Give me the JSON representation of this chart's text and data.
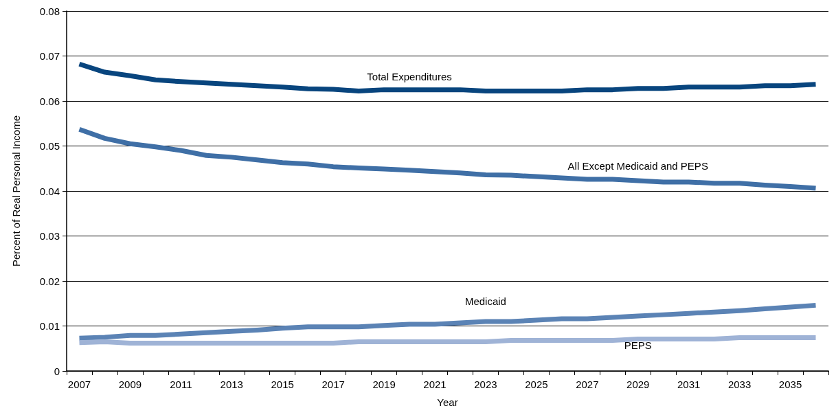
{
  "chart_data": {
    "type": "line",
    "xlabel": "Year",
    "ylabel": "Percent of Real Personal Income",
    "categories": [
      "2007",
      null,
      "2009",
      null,
      "2011",
      null,
      "2013",
      null,
      "2015",
      null,
      "2017",
      null,
      "2019",
      null,
      "2021",
      null,
      "2023",
      null,
      "2025",
      null,
      "2027",
      null,
      "2029",
      null,
      "2031",
      null,
      "2033",
      null,
      "2035",
      null
    ],
    "ylim": [
      0,
      0.08
    ],
    "yticks": [
      0,
      0.01,
      0.02,
      0.03,
      0.04,
      0.05,
      0.06,
      0.07,
      0.08
    ],
    "grid": "y",
    "legend": false,
    "marker": "none",
    "line_style": "solid",
    "series": [
      {
        "name": "Total Expenditures",
        "color": "#08457e",
        "values": [
          0.0682,
          0.0664,
          0.0656,
          0.0647,
          0.0643,
          0.064,
          0.0637,
          0.0634,
          0.0631,
          0.0627,
          0.0626,
          0.0622,
          0.0625,
          0.0625,
          0.0625,
          0.0625,
          0.0622,
          0.0622,
          0.0622,
          0.0622,
          0.0625,
          0.0625,
          0.0628,
          0.0628,
          0.0631,
          0.0631,
          0.0631,
          0.0634,
          0.0634,
          0.0637
        ]
      },
      {
        "name": "All Except Medicaid and PEPS",
        "color": "#3f6fa6",
        "values": [
          0.0537,
          0.0517,
          0.0505,
          0.0498,
          0.049,
          0.0479,
          0.0475,
          0.0469,
          0.0463,
          0.046,
          0.0454,
          0.0451,
          0.0449,
          0.0446,
          0.0443,
          0.044,
          0.0436,
          0.0435,
          0.0432,
          0.0429,
          0.0426,
          0.0426,
          0.0423,
          0.042,
          0.042,
          0.0417,
          0.0417,
          0.0413,
          0.041,
          0.0406
        ]
      },
      {
        "name": "Medicaid",
        "color": "#5b83b5",
        "values": [
          0.0073,
          0.0075,
          0.0079,
          0.0079,
          0.0082,
          0.0085,
          0.0088,
          0.0091,
          0.0095,
          0.0098,
          0.0098,
          0.0098,
          0.0101,
          0.0104,
          0.0104,
          0.0107,
          0.011,
          0.011,
          0.0113,
          0.0116,
          0.0116,
          0.0119,
          0.0122,
          0.0125,
          0.0128,
          0.0131,
          0.0134,
          0.0138,
          0.0142,
          0.0146
        ]
      },
      {
        "name": "PEPS",
        "color": "#9fb3d6",
        "values": [
          0.0063,
          0.0065,
          0.0062,
          0.0062,
          0.0062,
          0.0062,
          0.0062,
          0.0062,
          0.0062,
          0.0062,
          0.0062,
          0.0065,
          0.0065,
          0.0065,
          0.0065,
          0.0065,
          0.0065,
          0.0068,
          0.0068,
          0.0068,
          0.0068,
          0.0068,
          0.0071,
          0.0071,
          0.0071,
          0.0071,
          0.0074,
          0.0074,
          0.0074,
          0.0074
        ]
      }
    ]
  }
}
